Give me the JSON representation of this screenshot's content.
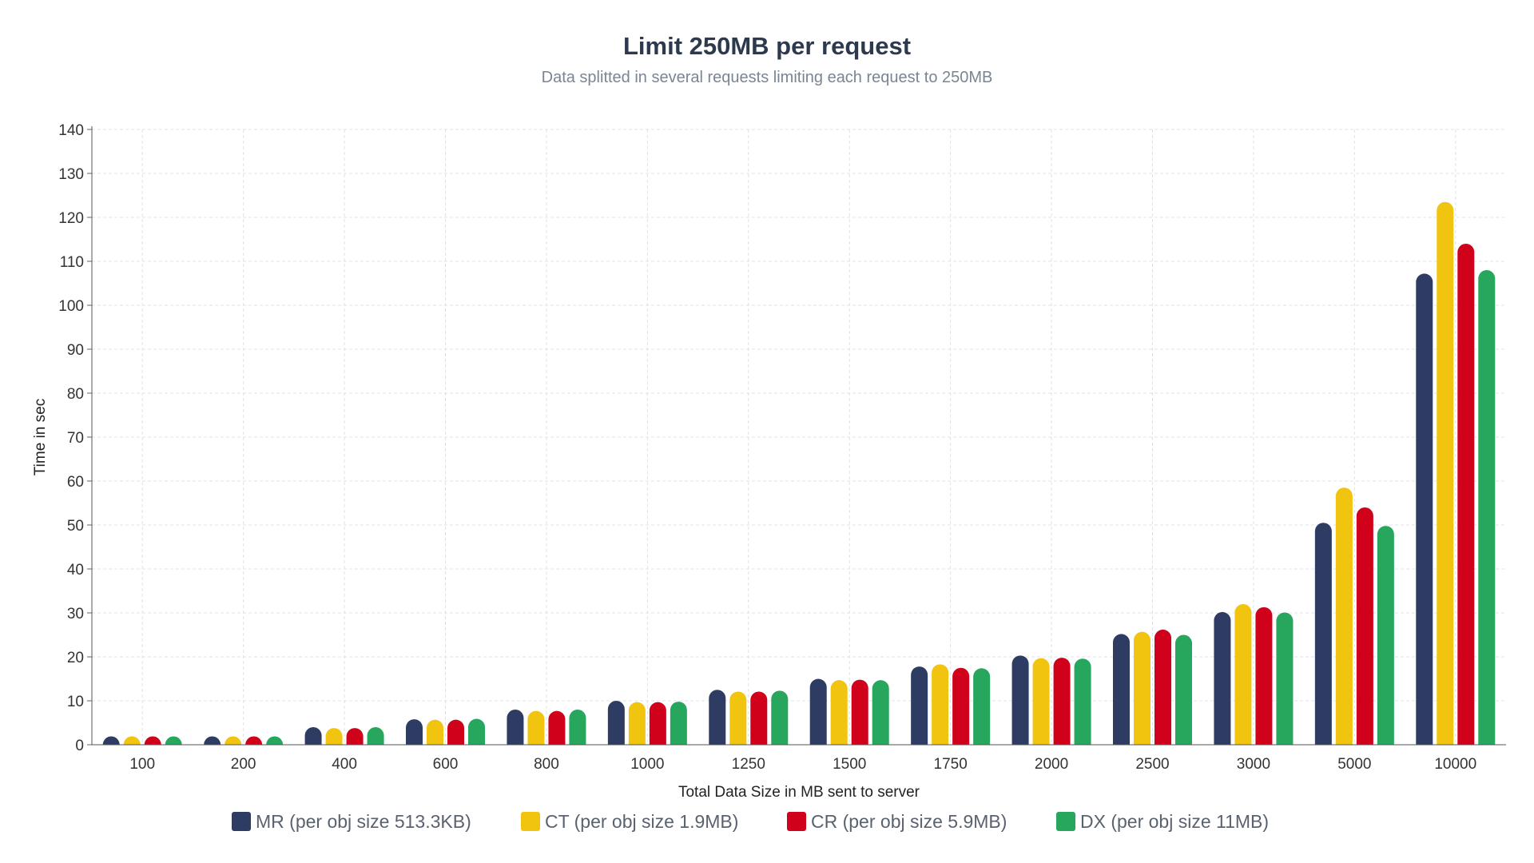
{
  "chart_data": {
    "type": "bar",
    "title": "Limit 250MB per request",
    "subtitle": "Data splitted in several requests limiting each request to 250MB",
    "xlabel": "Total Data Size in MB sent to server",
    "ylabel": "Time in sec",
    "ylim": [
      0,
      140
    ],
    "yticks": [
      0,
      10,
      20,
      30,
      40,
      50,
      60,
      70,
      80,
      90,
      100,
      110,
      120,
      130,
      140
    ],
    "grid": true,
    "legend_position": "bottom",
    "categories": [
      "100",
      "200",
      "400",
      "600",
      "800",
      "1000",
      "1250",
      "1500",
      "1750",
      "2000",
      "2500",
      "3000",
      "5000",
      "10000"
    ],
    "series": [
      {
        "name": "MR (per obj size 513.3KB)",
        "color": "#2e3c63",
        "values": [
          0.8,
          1.8,
          4,
          5.8,
          8,
          10,
          12.5,
          15,
          17.8,
          20.3,
          25.2,
          30.2,
          50.5,
          107.2
        ]
      },
      {
        "name": "CT (per obj size 1.9MB)",
        "color": "#f1c40f",
        "values": [
          0.8,
          1.8,
          3.8,
          5.7,
          7.7,
          9.7,
          12.1,
          14.7,
          18.3,
          19.7,
          25.7,
          32,
          58.5,
          123.5
        ]
      },
      {
        "name": "CR (per obj size 5.9MB)",
        "color": "#d0021b",
        "values": [
          0.8,
          1.8,
          3.8,
          5.7,
          7.7,
          9.7,
          12.1,
          14.8,
          17.5,
          19.8,
          26.2,
          31.3,
          54,
          114
        ]
      },
      {
        "name": "DX (per obj size 11MB)",
        "color": "#27a75d",
        "values": [
          0.8,
          1.8,
          4,
          5.9,
          8,
          9.8,
          12.3,
          14.7,
          17.4,
          19.6,
          25,
          30.1,
          49.8,
          108
        ]
      }
    ]
  }
}
